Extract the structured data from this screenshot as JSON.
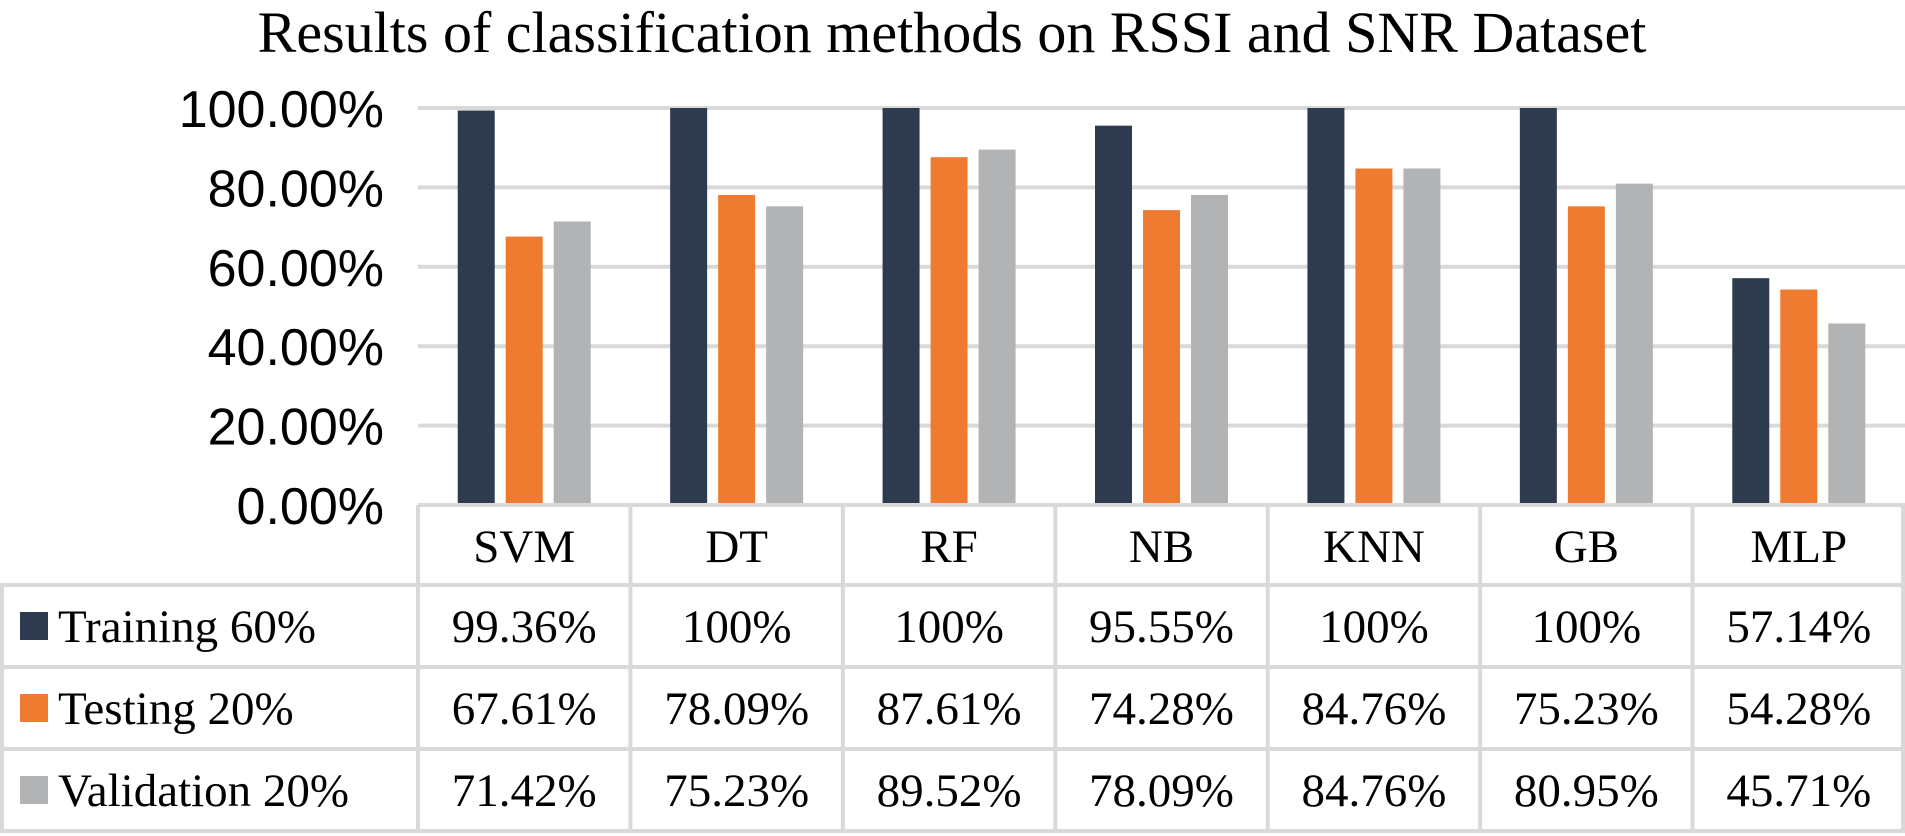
{
  "chart_data": {
    "type": "bar",
    "title": "Results of classification methods on RSSI and SNR Dataset",
    "categories": [
      "SVM",
      "DT",
      "RF",
      "NB",
      "KNN",
      "GB",
      "MLP"
    ],
    "ylim": [
      0,
      100
    ],
    "yticks": [
      0,
      20,
      40,
      60,
      80,
      100
    ],
    "ytick_labels": [
      "0.00%",
      "20.00%",
      "40.00%",
      "60.00%",
      "80.00%",
      "100.00%"
    ],
    "grid": true,
    "legend": "data-table-left",
    "series": [
      {
        "name": "Training 60%",
        "color": "#2e3b4f",
        "values": [
          99.36,
          100,
          100,
          95.55,
          100,
          100,
          57.14
        ],
        "labels": [
          "99.36%",
          "100%",
          "100%",
          "95.55%",
          "100%",
          "100%",
          "57.14%"
        ]
      },
      {
        "name": "Testing 20%",
        "color": "#ee7b30",
        "values": [
          67.61,
          78.09,
          87.61,
          74.28,
          84.76,
          75.23,
          54.28
        ],
        "labels": [
          "67.61%",
          "78.09%",
          "87.61%",
          "74.28%",
          "84.76%",
          "75.23%",
          "54.28%"
        ]
      },
      {
        "name": "Validation 20%",
        "color": "#b1b3b5",
        "values": [
          71.42,
          75.23,
          89.52,
          78.09,
          84.76,
          80.95,
          45.71
        ],
        "labels": [
          "71.42%",
          "75.23%",
          "89.52%",
          "78.09%",
          "84.76%",
          "80.95%",
          "45.71%"
        ]
      }
    ]
  }
}
